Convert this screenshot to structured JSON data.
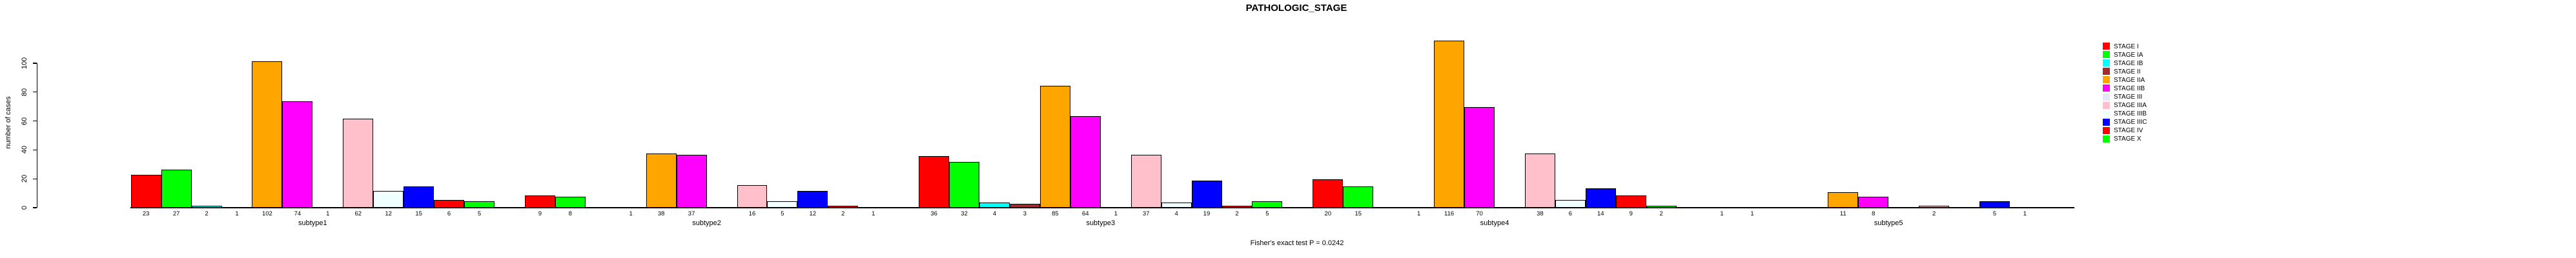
{
  "title": "PATHOLOGIC_STAGE",
  "footer": "Fisher's exact test P = 0.0242",
  "y_axis": {
    "label": "number of cases",
    "ticks": [
      0,
      20,
      40,
      60,
      80,
      100
    ]
  },
  "legend": {
    "position": "right",
    "items": [
      {
        "label": "STAGE I",
        "color": "#FF0000"
      },
      {
        "label": "STAGE IA",
        "color": "#00FF00"
      },
      {
        "label": "STAGE IB",
        "color": "#00FFFF"
      },
      {
        "label": "STAGE II",
        "color": "#A52A2A"
      },
      {
        "label": "STAGE IIA",
        "color": "#FFA500"
      },
      {
        "label": "STAGE IIB",
        "color": "#FF00FF"
      },
      {
        "label": "STAGE III",
        "color": "#E6E6FA"
      },
      {
        "label": "STAGE IIIA",
        "color": "#FFC0CB"
      },
      {
        "label": "STAGE IIIB",
        "color": "#F0FFFF"
      },
      {
        "label": "STAGE IIIC",
        "color": "#0000FF"
      },
      {
        "label": "STAGE IV",
        "color": "#FF0000"
      },
      {
        "label": "STAGE X",
        "color": "#00FF00"
      }
    ]
  },
  "chart_data": {
    "type": "bar",
    "title": "PATHOLOGIC_STAGE",
    "xlabel": "",
    "ylabel": "number of cases",
    "ylim": [
      0,
      100
    ],
    "grid": false,
    "legend_position": "right",
    "categories": [
      "subtype1",
      "subtype2",
      "subtype3",
      "subtype4",
      "subtype5"
    ],
    "stage_labels": [
      "STAGE I",
      "STAGE IA",
      "STAGE IB",
      "STAGE II",
      "STAGE IIA",
      "STAGE IIB",
      "STAGE III",
      "STAGE IIIA",
      "STAGE IIIB",
      "STAGE IIIC",
      "STAGE IV",
      "STAGE X"
    ],
    "series": [
      {
        "name": "subtype1",
        "values": [
          23,
          27,
          2,
          1,
          102,
          74,
          1,
          62,
          12,
          15,
          6,
          5
        ]
      },
      {
        "name": "subtype2",
        "values": [
          9,
          8,
          0,
          1,
          38,
          37,
          0,
          16,
          5,
          12,
          2,
          1
        ]
      },
      {
        "name": "subtype3",
        "values": [
          36,
          32,
          4,
          3,
          85,
          64,
          1,
          37,
          4,
          19,
          2,
          5
        ]
      },
      {
        "name": "subtype4",
        "values": [
          20,
          15,
          0,
          1,
          116,
          70,
          0,
          38,
          6,
          14,
          9,
          2
        ]
      },
      {
        "name": "subtype5",
        "values": [
          1,
          1,
          0,
          0,
          11,
          8,
          0,
          2,
          0,
          5,
          1,
          0
        ]
      }
    ],
    "bar_labels_shown_only_for_nonzero": true,
    "annotation": "Fisher's exact test P = 0.0242"
  }
}
